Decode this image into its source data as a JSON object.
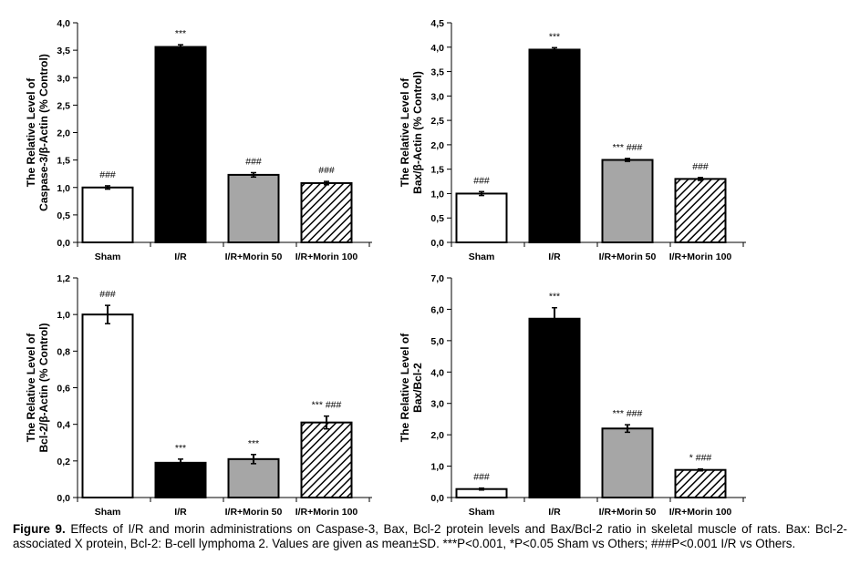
{
  "chart_data": [
    {
      "type": "bar",
      "categories": [
        "Sham",
        "I/R",
        "I/R+Morin 50",
        "I/R+Morin 100"
      ],
      "values": [
        1.0,
        3.56,
        1.23,
        1.08
      ],
      "errors": [
        0.03,
        0.04,
        0.04,
        0.03
      ],
      "significance": [
        "###",
        "***",
        "###",
        "###"
      ],
      "ylabel_lines": [
        "The Relative Level of",
        "Caspase-3/β-Actin (% Control)"
      ],
      "ylim": [
        0,
        4.0
      ],
      "yticks": [
        "0,0",
        "0,5",
        "1,0",
        "1,5",
        "2,0",
        "2,5",
        "3,0",
        "3,5",
        "4,0"
      ]
    },
    {
      "type": "bar",
      "categories": [
        "Sham",
        "I/R",
        "I/R+Morin 50",
        "I/R+Morin 100"
      ],
      "values": [
        1.0,
        3.95,
        1.69,
        1.3
      ],
      "errors": [
        0.04,
        0.04,
        0.03,
        0.03
      ],
      "significance": [
        "###",
        "***",
        "*** ###",
        "###"
      ],
      "ylabel_lines": [
        "The Relative Level of",
        "Bax/β-Actin (% Control)"
      ],
      "ylim": [
        0,
        4.5
      ],
      "yticks": [
        "0,0",
        "0,5",
        "1,0",
        "1,5",
        "2,0",
        "2,5",
        "3,0",
        "3,5",
        "4,0",
        "4,5"
      ]
    },
    {
      "type": "bar",
      "categories": [
        "Sham",
        "I/R",
        "I/R+Morin 50",
        "I/R+Morin 100"
      ],
      "values": [
        1.0,
        0.19,
        0.21,
        0.41
      ],
      "errors": [
        0.05,
        0.02,
        0.025,
        0.035
      ],
      "significance": [
        "###",
        "***",
        "***",
        "*** ###"
      ],
      "ylabel_lines": [
        "The Relative Level of",
        "Bcl-2/β-Actin (% Control)"
      ],
      "ylim": [
        0,
        1.2
      ],
      "yticks": [
        "0,0",
        "0,2",
        "0,4",
        "0,6",
        "0,8",
        "1,0",
        "1,2"
      ]
    },
    {
      "type": "bar",
      "categories": [
        "Sham",
        "I/R",
        "I/R+Morin 50",
        "I/R+Morin 100"
      ],
      "values": [
        0.27,
        5.7,
        2.2,
        0.88
      ],
      "errors": [
        0.03,
        0.35,
        0.12,
        0.03
      ],
      "significance": [
        "###",
        "***",
        "*** ###",
        "* ###"
      ],
      "ylabel_lines": [
        "The Relative Level of",
        "Bax/Bcl-2"
      ],
      "ylim": [
        0,
        7.0
      ],
      "yticks": [
        "0,0",
        "1,0",
        "2,0",
        "3,0",
        "4,0",
        "5,0",
        "6,0",
        "7,0"
      ]
    }
  ],
  "bar_styles": [
    "white",
    "black",
    "gray",
    "hatched"
  ],
  "colors": {
    "black": "#000000",
    "gray": "#a6a6a6",
    "white": "#ffffff"
  },
  "caption": {
    "label": "Figure 9.",
    "text": " Effects of I/R and morin administrations on Caspase-3, Bax, Bcl-2 protein levels and Bax/Bcl-2 ratio in skeletal muscle of rats. Bax: Bcl-2-associated X protein, Bcl-2: B-cell lymphoma 2. Values are given as mean±SD. ***P<0.001, *P<0.05 Sham vs Others; ###P<0.001 I/R vs Others."
  }
}
